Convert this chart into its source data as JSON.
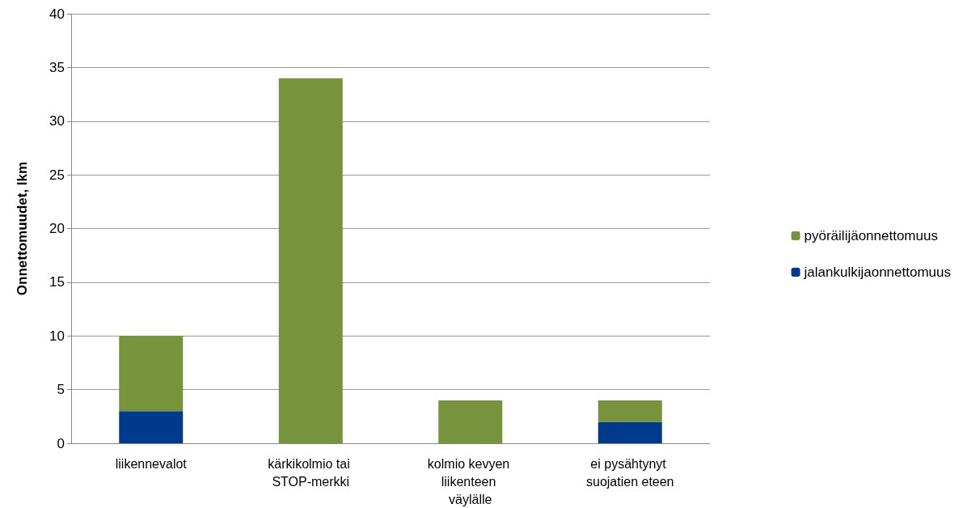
{
  "chart_data": {
    "type": "bar",
    "stacked": true,
    "ylabel": "Onnettomuudet, lkm",
    "categories": [
      "liikennevalot",
      "kärkikolmio tai STOP-merkki",
      "kolmio kevyen liikenteen väylälle",
      "ei pysähtynyt suojatien eteen"
    ],
    "series": [
      {
        "name": "jalankulkijaonnettomuus",
        "color": "#003a8c",
        "values": [
          3,
          0,
          0,
          2
        ]
      },
      {
        "name": "pyöräilijäonnettomuus",
        "color": "#77933c",
        "values": [
          7,
          34,
          4,
          2
        ]
      }
    ],
    "ylim": [
      0,
      40
    ],
    "yticks": [
      0,
      5,
      10,
      15,
      20,
      25,
      30,
      35,
      40
    ],
    "grid": "y",
    "legend": "right"
  }
}
